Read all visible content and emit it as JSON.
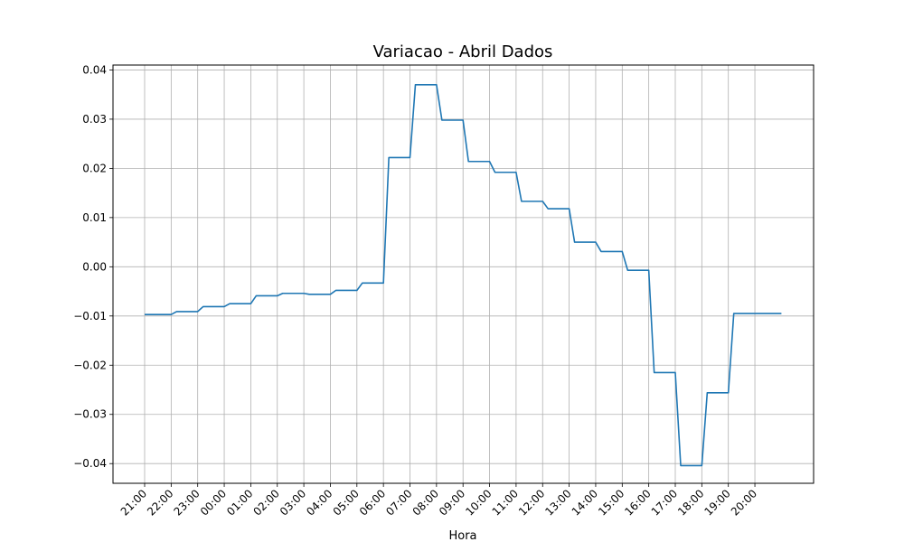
{
  "chart_data": {
    "type": "line",
    "drawstyle": "steps-post",
    "title": "Variacao - Abril Dados",
    "xlabel": "Hora",
    "ylabel": "",
    "categories": [
      "21:00",
      "22:00",
      "23:00",
      "00:00",
      "01:00",
      "02:00",
      "03:00",
      "04:00",
      "05:00",
      "06:00",
      "07:00",
      "08:00",
      "09:00",
      "10:00",
      "11:00",
      "12:00",
      "13:00",
      "14:00",
      "15:00",
      "16:00",
      "17:00",
      "18:00",
      "19:00",
      "20:00"
    ],
    "series": [
      {
        "color": "#1f77b4",
        "values": [
          -0.0097,
          -0.0091,
          -0.0081,
          -0.0075,
          -0.0059,
          -0.0054,
          -0.0056,
          -0.0048,
          -0.0033,
          0.0222,
          0.037,
          0.0298,
          0.0214,
          0.0192,
          0.0133,
          0.0118,
          0.005,
          0.0031,
          -0.0007,
          -0.0215,
          -0.0404,
          -0.0256,
          -0.0095,
          -0.0095
        ]
      }
    ],
    "ylim": [
      -0.044,
      0.041
    ],
    "yticks": [
      -0.04,
      -0.03,
      -0.02,
      -0.01,
      0.0,
      0.01,
      0.02,
      0.03,
      0.04
    ],
    "ytick_labels": [
      "−0.04",
      "−0.03",
      "−0.02",
      "−0.01",
      "0.00",
      "0.01",
      "0.02",
      "0.03",
      "0.04"
    ],
    "grid": true,
    "legend": false
  }
}
